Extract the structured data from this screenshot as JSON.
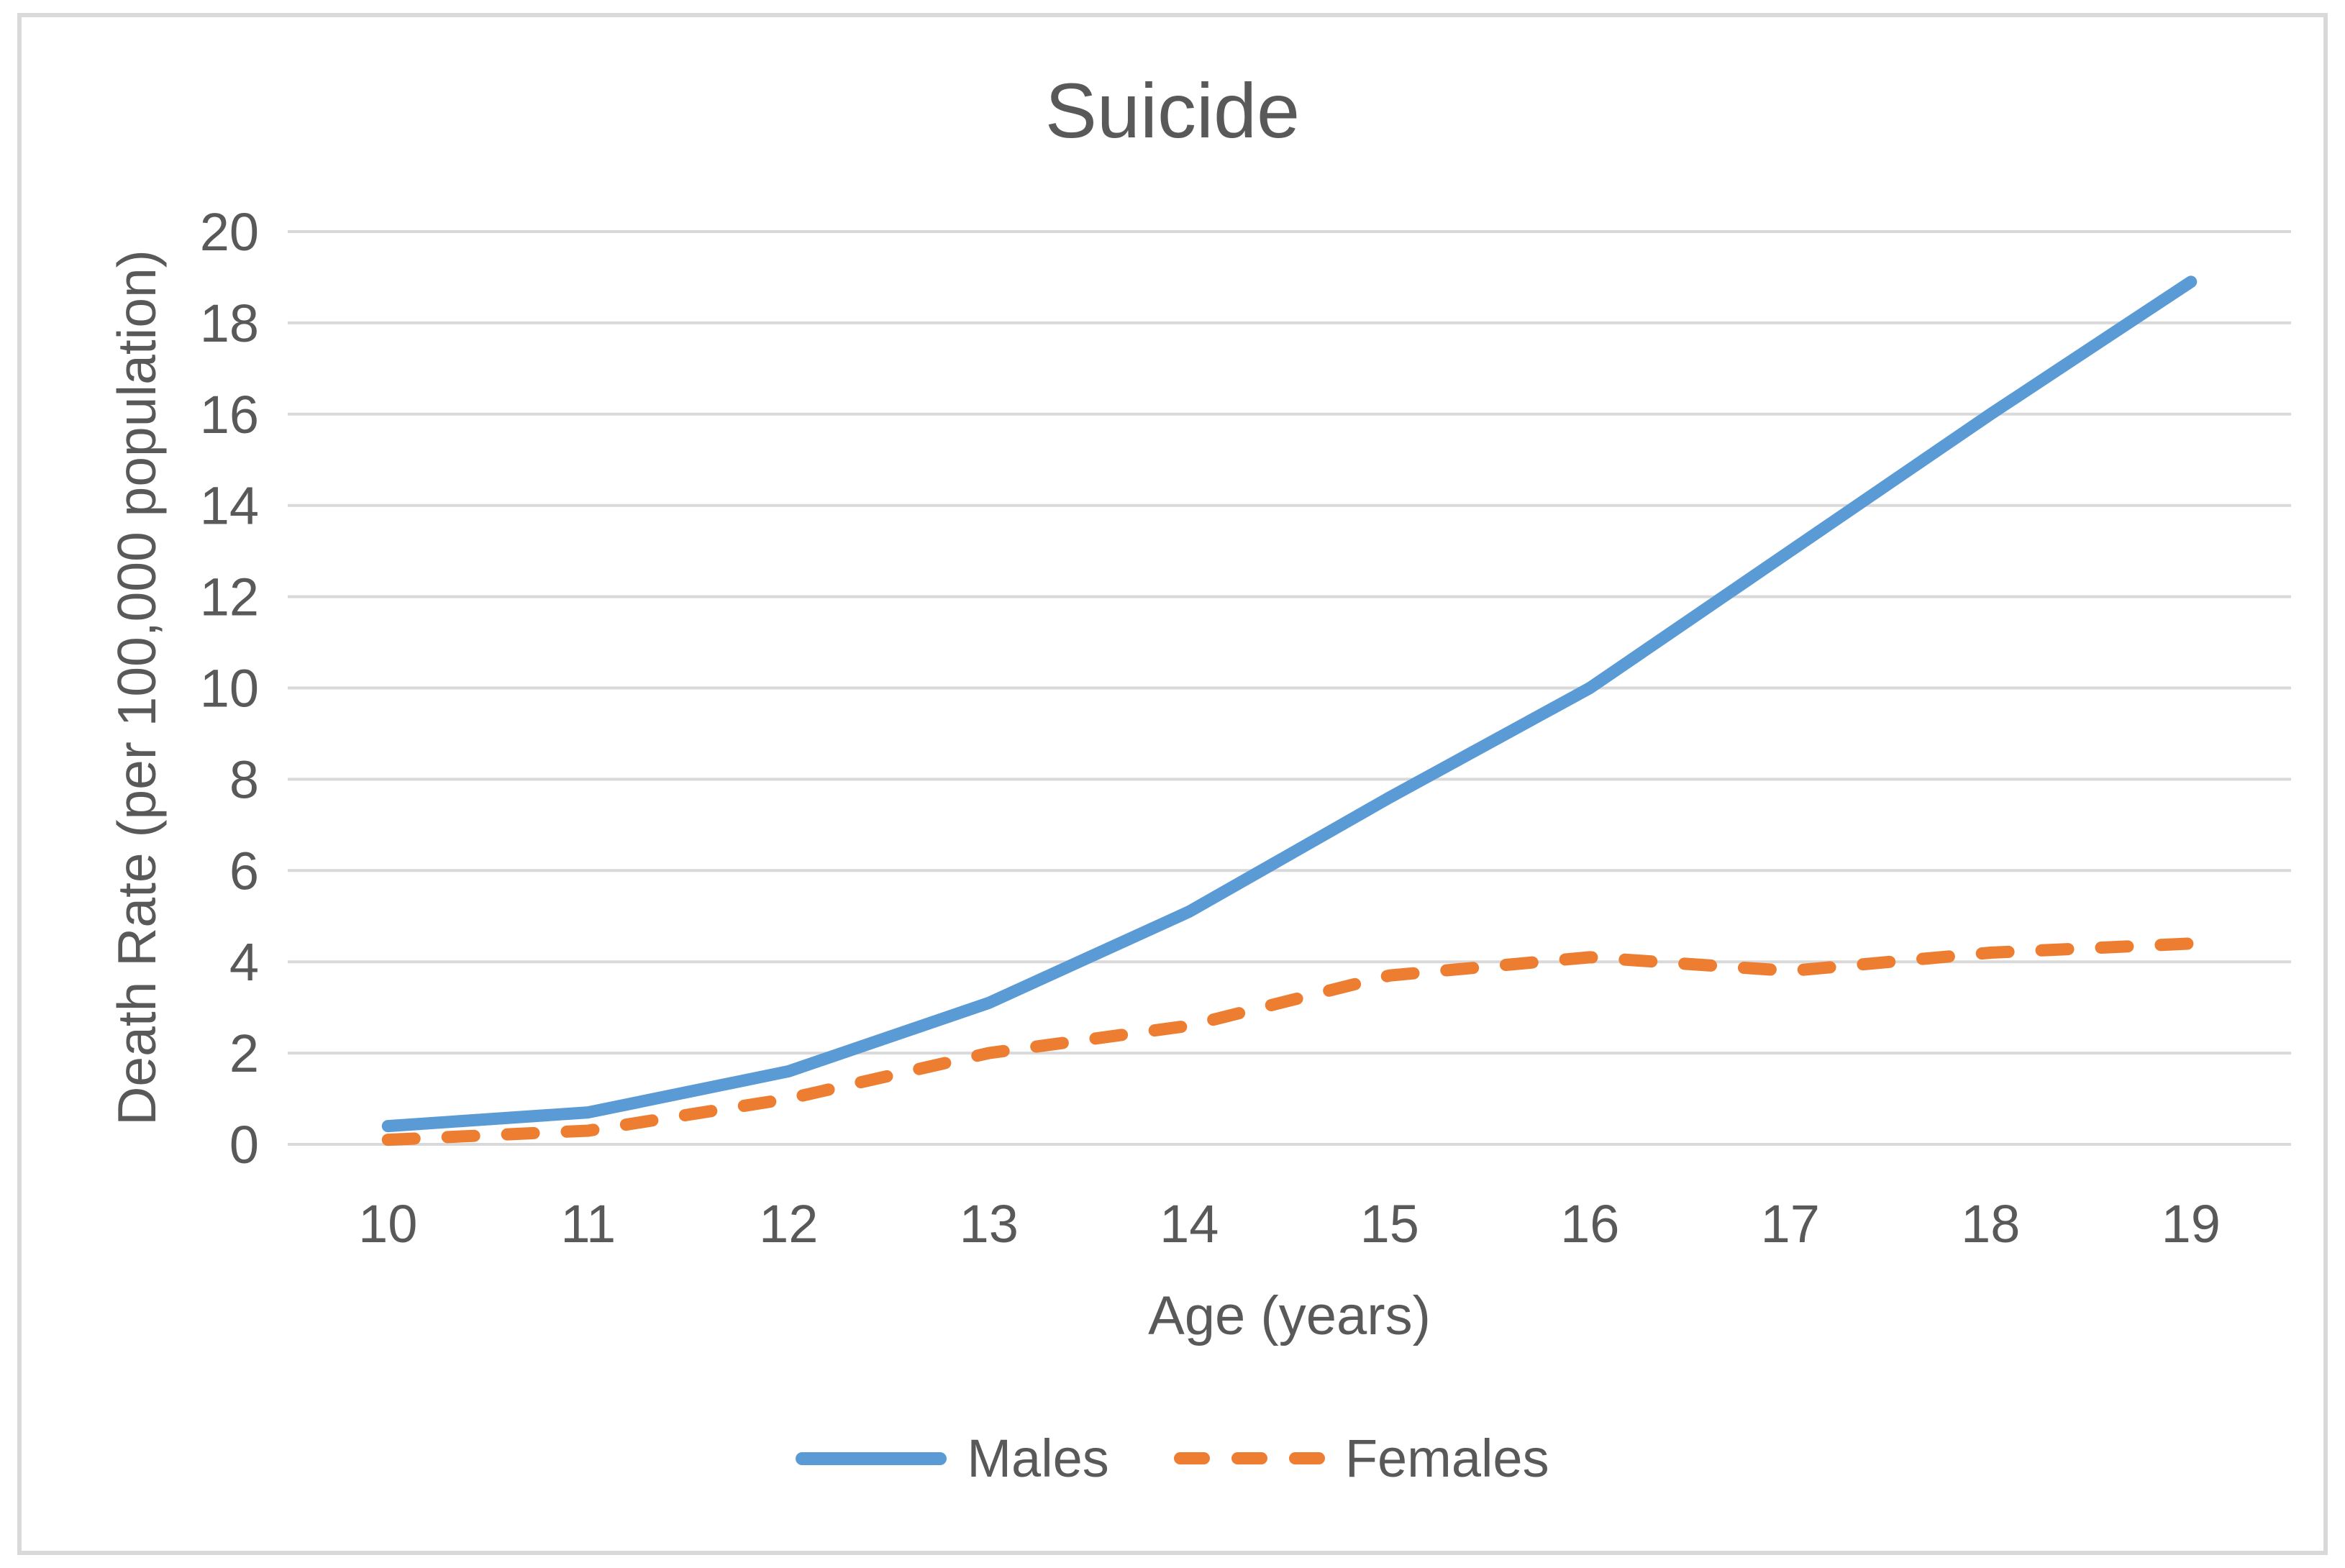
{
  "page": {
    "title": "Suicide"
  },
  "colors": {
    "text": "#595959",
    "gridline": "#D9D9D9",
    "frame_border": "#D9D9D9",
    "background": "#FFFFFF",
    "males_line": "#5B9BD5",
    "females_line": "#ED7D31"
  },
  "chart_data": {
    "type": "line",
    "title": "Suicide",
    "xlabel": "Age (years)",
    "ylabel": "Death Rate (per 100,000 population)",
    "x": [
      10,
      11,
      12,
      13,
      14,
      15,
      16,
      17,
      18,
      19
    ],
    "xticks": [
      "10",
      "11",
      "12",
      "13",
      "14",
      "15",
      "16",
      "17",
      "18",
      "19"
    ],
    "yticks": [
      "0",
      "2",
      "4",
      "6",
      "8",
      "10",
      "12",
      "14",
      "16",
      "18",
      "20"
    ],
    "ylim": [
      0,
      20
    ],
    "ytick_step": 2,
    "grid": "horizontal",
    "legend_position": "bottom",
    "series": [
      {
        "name": "Males",
        "style": "solid",
        "color": "#5B9BD5",
        "values": [
          0.4,
          0.7,
          1.6,
          3.1,
          5.1,
          7.6,
          10.0,
          13.0,
          16.0,
          18.9
        ]
      },
      {
        "name": "Females",
        "style": "dashed",
        "color": "#ED7D31",
        "values": [
          0.1,
          0.3,
          1.0,
          2.0,
          2.6,
          3.7,
          4.1,
          3.8,
          4.2,
          4.4
        ]
      }
    ]
  }
}
